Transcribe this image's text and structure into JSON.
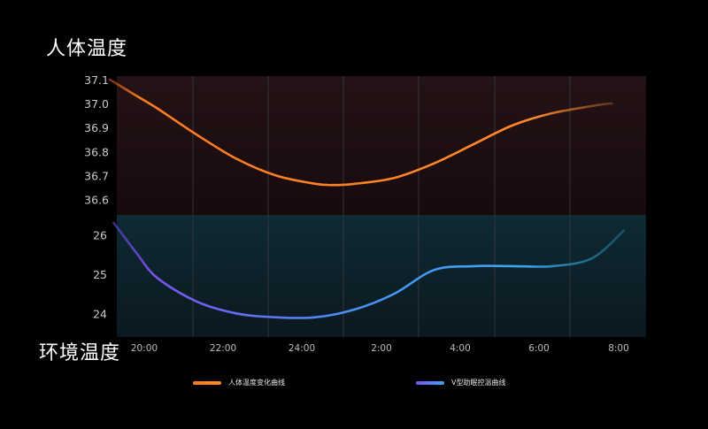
{
  "titles": {
    "body_temp": "人体温度",
    "ambient_temp": "环境温度"
  },
  "legend": {
    "body_curve": "人体温度变化曲线",
    "v_curve": "V型助眠控温曲线"
  },
  "colors": {
    "body_line": "#ff8124",
    "v_line_start": "#7b52f0",
    "v_line_end": "#3aa8f5",
    "top_panel_bg": "#1c0f12",
    "bottom_panel_bg": "#0f232b"
  },
  "chart_data": [
    {
      "type": "line",
      "panel": "top",
      "x": [
        "20:00",
        "22:00",
        "24:00",
        "2:00",
        "4:00",
        "6:00",
        "8:00"
      ],
      "y_ticks": [
        37.1,
        37.0,
        36.9,
        36.8,
        36.7,
        36.6
      ],
      "ylim": [
        36.55,
        37.1
      ],
      "series": [
        {
          "name": "人体温度变化曲线",
          "x": [
            19.8,
            20.5,
            21.0,
            22.0,
            23.0,
            24.0,
            25.0,
            25.5,
            26.0,
            27.0,
            28.0,
            29.0,
            30.0,
            31.0,
            32.2,
            32.5
          ],
          "values": [
            37.1,
            37.03,
            36.98,
            36.87,
            36.77,
            36.7,
            36.665,
            36.66,
            36.665,
            36.69,
            36.75,
            36.83,
            36.91,
            36.96,
            36.995,
            37.0
          ]
        }
      ]
    },
    {
      "type": "line",
      "panel": "bottom",
      "x": [
        "20:00",
        "22:00",
        "24:00",
        "2:00",
        "4:00",
        "6:00",
        "8:00"
      ],
      "y_ticks": [
        26,
        25,
        24
      ],
      "ylim": [
        23.4,
        26.5
      ],
      "series": [
        {
          "name": "V型助眠控温曲线",
          "x": [
            19.9,
            20.5,
            21.0,
            22.0,
            23.0,
            24.0,
            25.0,
            26.0,
            27.0,
            28.0,
            29.0,
            30.0,
            31.0,
            32.0,
            32.8
          ],
          "values": [
            26.3,
            25.5,
            24.9,
            24.3,
            24.0,
            23.9,
            23.9,
            24.1,
            24.5,
            25.1,
            25.2,
            25.2,
            25.2,
            25.4,
            26.1
          ]
        }
      ]
    }
  ]
}
